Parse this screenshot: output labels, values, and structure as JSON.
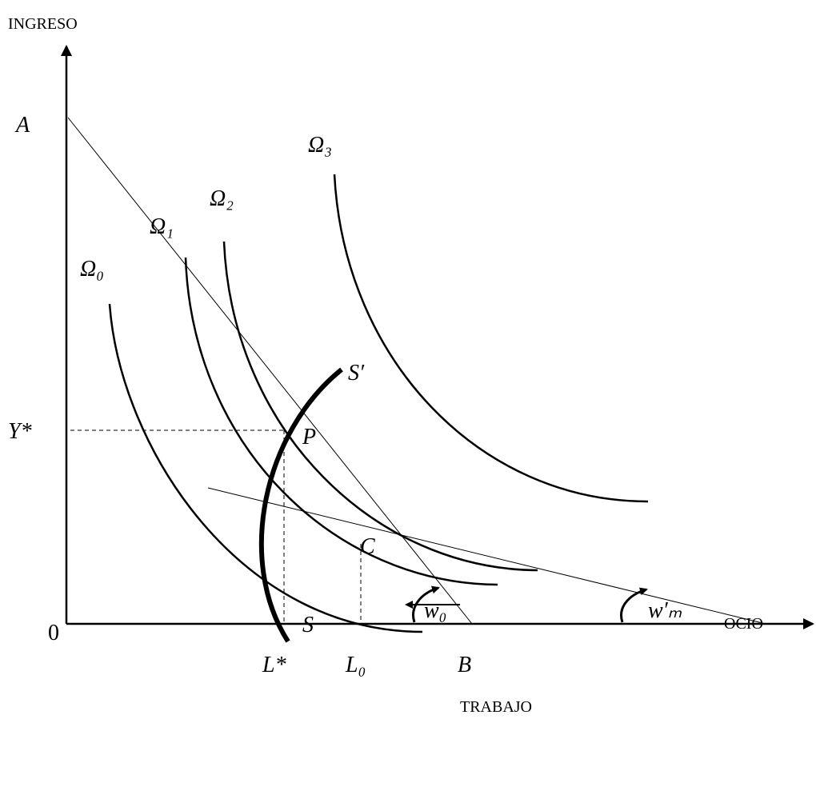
{
  "axes": {
    "y_label": "INGRESO",
    "x_label_right": "OCIO",
    "x_label_bottom": "TRABAJO",
    "origin": "0"
  },
  "points": {
    "A": "A",
    "B": "B",
    "P": "P",
    "C": "C"
  },
  "curves": {
    "omega0": "Ω₀",
    "omega1": "Ω₁",
    "omega2": "Ω₂",
    "omega3": "Ω₃",
    "supply_top": "S′",
    "supply_bottom": "S"
  },
  "levels": {
    "y_star": "Y*",
    "l_star": "L*",
    "l_zero": "L₀"
  },
  "angles": {
    "w0": "w₀",
    "wm": "w′ₘ"
  }
}
